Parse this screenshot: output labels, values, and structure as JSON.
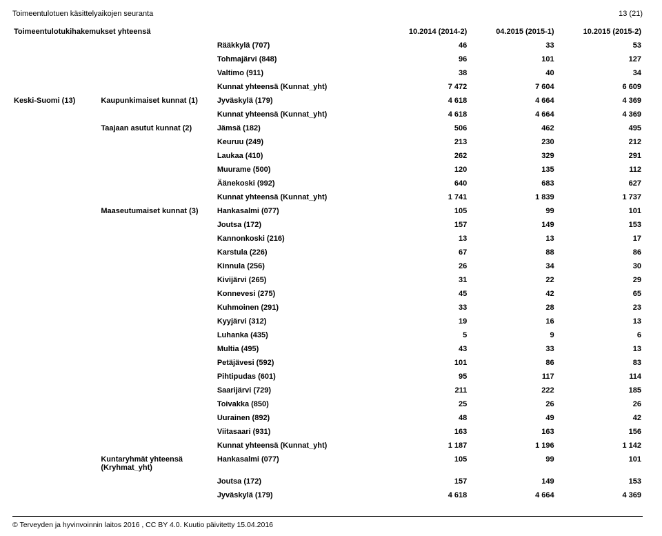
{
  "header": {
    "title": "Toimeentulotuen käsittelyaikojen seuranta",
    "page_label": "13 (21)"
  },
  "table": {
    "head": {
      "row_title": "Toimeentulotukihakemukset yhteensä",
      "periods": [
        "10.2014 (2014-2)",
        "04.2015 (2015-1)",
        "10.2015 (2015-2)"
      ]
    },
    "rows": [
      {
        "c0": "",
        "c1": "",
        "c2": "Rääkkylä (707)",
        "v": [
          "46",
          "33",
          "53"
        ],
        "bold": true
      },
      {
        "c0": "",
        "c1": "",
        "c2": "Tohmajärvi (848)",
        "v": [
          "96",
          "101",
          "127"
        ],
        "bold": true
      },
      {
        "c0": "",
        "c1": "",
        "c2": "Valtimo (911)",
        "v": [
          "38",
          "40",
          "34"
        ],
        "bold": true
      },
      {
        "c0": "",
        "c1": "",
        "c2": "Kunnat yhteensä (Kunnat_yht)",
        "v": [
          "7 472",
          "7 604",
          "6 609"
        ],
        "bold": true
      },
      {
        "c0": "Keski-Suomi (13)",
        "c1": "Kaupunkimaiset kunnat (1)",
        "c2": "Jyväskylä (179)",
        "v": [
          "4 618",
          "4 664",
          "4 369"
        ],
        "bold": true
      },
      {
        "c0": "",
        "c1": "",
        "c2": "Kunnat yhteensä (Kunnat_yht)",
        "v": [
          "4 618",
          "4 664",
          "4 369"
        ],
        "bold": true
      },
      {
        "c0": "",
        "c1": "Taajaan asutut kunnat (2)",
        "c2": "Jämsä (182)",
        "v": [
          "506",
          "462",
          "495"
        ],
        "bold": true
      },
      {
        "c0": "",
        "c1": "",
        "c2": "Keuruu (249)",
        "v": [
          "213",
          "230",
          "212"
        ],
        "bold": true
      },
      {
        "c0": "",
        "c1": "",
        "c2": "Laukaa (410)",
        "v": [
          "262",
          "329",
          "291"
        ],
        "bold": true
      },
      {
        "c0": "",
        "c1": "",
        "c2": "Muurame (500)",
        "v": [
          "120",
          "135",
          "112"
        ],
        "bold": true
      },
      {
        "c0": "",
        "c1": "",
        "c2": "Äänekoski (992)",
        "v": [
          "640",
          "683",
          "627"
        ],
        "bold": true
      },
      {
        "c0": "",
        "c1": "",
        "c2": "Kunnat yhteensä (Kunnat_yht)",
        "v": [
          "1 741",
          "1 839",
          "1 737"
        ],
        "bold": true
      },
      {
        "c0": "",
        "c1": "Maaseutumaiset kunnat (3)",
        "c2": "Hankasalmi (077)",
        "v": [
          "105",
          "99",
          "101"
        ],
        "bold": true
      },
      {
        "c0": "",
        "c1": "",
        "c2": "Joutsa (172)",
        "v": [
          "157",
          "149",
          "153"
        ],
        "bold": true
      },
      {
        "c0": "",
        "c1": "",
        "c2": "Kannonkoski (216)",
        "v": [
          "13",
          "13",
          "17"
        ],
        "bold": true
      },
      {
        "c0": "",
        "c1": "",
        "c2": "Karstula (226)",
        "v": [
          "67",
          "88",
          "86"
        ],
        "bold": true
      },
      {
        "c0": "",
        "c1": "",
        "c2": "Kinnula (256)",
        "v": [
          "26",
          "34",
          "30"
        ],
        "bold": true
      },
      {
        "c0": "",
        "c1": "",
        "c2": "Kivijärvi (265)",
        "v": [
          "31",
          "22",
          "29"
        ],
        "bold": true
      },
      {
        "c0": "",
        "c1": "",
        "c2": "Konnevesi (275)",
        "v": [
          "45",
          "42",
          "65"
        ],
        "bold": true
      },
      {
        "c0": "",
        "c1": "",
        "c2": "Kuhmoinen (291)",
        "v": [
          "33",
          "28",
          "23"
        ],
        "bold": true
      },
      {
        "c0": "",
        "c1": "",
        "c2": "Kyyjärvi (312)",
        "v": [
          "19",
          "16",
          "13"
        ],
        "bold": true
      },
      {
        "c0": "",
        "c1": "",
        "c2": "Luhanka (435)",
        "v": [
          "5",
          "9",
          "6"
        ],
        "bold": true
      },
      {
        "c0": "",
        "c1": "",
        "c2": "Multia (495)",
        "v": [
          "43",
          "33",
          "13"
        ],
        "bold": true
      },
      {
        "c0": "",
        "c1": "",
        "c2": "Petäjävesi (592)",
        "v": [
          "101",
          "86",
          "83"
        ],
        "bold": true
      },
      {
        "c0": "",
        "c1": "",
        "c2": "Pihtipudas (601)",
        "v": [
          "95",
          "117",
          "114"
        ],
        "bold": true
      },
      {
        "c0": "",
        "c1": "",
        "c2": "Saarijärvi (729)",
        "v": [
          "211",
          "222",
          "185"
        ],
        "bold": true
      },
      {
        "c0": "",
        "c1": "",
        "c2": "Toivakka (850)",
        "v": [
          "25",
          "26",
          "26"
        ],
        "bold": true
      },
      {
        "c0": "",
        "c1": "",
        "c2": "Uurainen (892)",
        "v": [
          "48",
          "49",
          "42"
        ],
        "bold": true
      },
      {
        "c0": "",
        "c1": "",
        "c2": "Viitasaari (931)",
        "v": [
          "163",
          "163",
          "156"
        ],
        "bold": true
      },
      {
        "c0": "",
        "c1": "",
        "c2": "Kunnat yhteensä (Kunnat_yht)",
        "v": [
          "1 187",
          "1 196",
          "1 142"
        ],
        "bold": true
      },
      {
        "c0": "",
        "c1": "Kuntaryhmät yhteensä (Kryhmat_yht)",
        "c2": "Hankasalmi (077)",
        "v": [
          "105",
          "99",
          "101"
        ],
        "bold": true
      },
      {
        "c0": "",
        "c1": "",
        "c2": "Joutsa (172)",
        "v": [
          "157",
          "149",
          "153"
        ],
        "bold": true
      },
      {
        "c0": "",
        "c1": "",
        "c2": "Jyväskylä (179)",
        "v": [
          "4 618",
          "4 664",
          "4 369"
        ],
        "bold": true
      }
    ]
  },
  "footer": {
    "text": "© Terveyden ja hyvinvoinnin laitos 2016 , CC BY 4.0.  Kuutio päivitetty 15.04.2016"
  }
}
